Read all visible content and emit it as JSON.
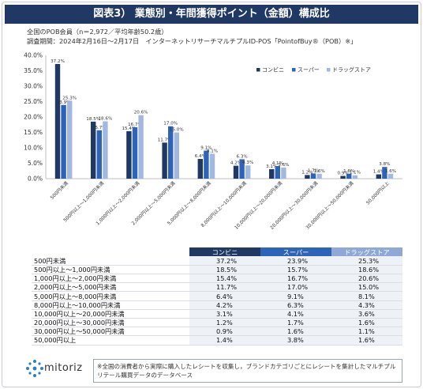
{
  "title": "図表3） 業態別・年間獲得ポイント（金額）構成比",
  "subtitle_line1": "全国のPOB会員（n＝2,972／平均年齢50.2歳）",
  "subtitle_line2": "調査期間：2024年2月16日～2月17日　インターネットリサーチマルチプルID-POS「PointofBuy®（POB）※」",
  "chart_data": {
    "type": "bar",
    "categories": [
      "500円未満",
      "500円以上～1,000円未満",
      "1,000円以上～2,000円未満",
      "2,000円以上～5,000円未満",
      "5,000円以上～8,000円未満",
      "8,000円以上～10,000円未満",
      "10,000円以上～20,000円未満",
      "20,000円以上～30,000円未満",
      "30,000円以上～50,000円未満",
      "50,000円以上"
    ],
    "series": [
      {
        "name": "コンビニ",
        "color": "#1f3864",
        "values": [
          37.2,
          18.5,
          15.4,
          11.7,
          6.4,
          4.2,
          3.1,
          1.2,
          0.9,
          1.4
        ],
        "labels": [
          "37.2%",
          "18.5%",
          "15.4%",
          "11.7%",
          "6.4%",
          "4.2%",
          "3.1%",
          "1.2%",
          "0.9%",
          "1.4%"
        ]
      },
      {
        "name": "スーパー",
        "color": "#2e64b8",
        "values": [
          23.9,
          15.7,
          16.7,
          17.0,
          9.1,
          6.3,
          4.1,
          1.7,
          1.6,
          3.8
        ],
        "labels": [
          "23.9%",
          "15.7%",
          "16.7%",
          "17.0%",
          "9.1%",
          "6.3%",
          "4.1%",
          "1.7%",
          "1.6%",
          "3.8%"
        ]
      },
      {
        "name": "ドラッグストア",
        "color": "#a3b8e0",
        "values": [
          25.3,
          18.6,
          20.6,
          15.0,
          8.1,
          4.3,
          3.6,
          1.6,
          1.1,
          1.6
        ],
        "labels": [
          "25.3%",
          "18.6%",
          "20.6%",
          "15.0%",
          "8.1%",
          "4.3%",
          "3.6%",
          "1.6%",
          "1.1%",
          "1.6%"
        ]
      }
    ],
    "ylim": [
      0,
      40
    ],
    "yticks": [
      "0.0%",
      "5.0%",
      "10.0%",
      "15.0%",
      "20.0%",
      "25.0%",
      "30.0%",
      "35.0%",
      "40.0%"
    ],
    "legend_position": "top-right",
    "grid": false
  },
  "table": {
    "headers": [
      "コンビニ",
      "スーパー",
      "ドラッグストア"
    ],
    "rows": [
      {
        "label": "500円未満",
        "v": [
          "37.2%",
          "23.9%",
          "25.3%"
        ]
      },
      {
        "label": "500円以上～1,000円未満",
        "v": [
          "18.5%",
          "15.7%",
          "18.6%"
        ]
      },
      {
        "label": "1,000円以上～2,000円未満",
        "v": [
          "15.4%",
          "16.7%",
          "20.6%"
        ]
      },
      {
        "label": "2,000円以上～5,000円未満",
        "v": [
          "11.7%",
          "17.0%",
          "15.0%"
        ]
      },
      {
        "label": "5,000円以上～8,000円未満",
        "v": [
          "6.4%",
          "9.1%",
          "8.1%"
        ]
      },
      {
        "label": "8,000円以上～10,000円未満",
        "v": [
          "4.2%",
          "6.3%",
          "4.3%"
        ]
      },
      {
        "label": "10,000円以上～20,000円未満",
        "v": [
          "3.1%",
          "4.1%",
          "3.6%"
        ]
      },
      {
        "label": "20,000円以上～30,000円未満",
        "v": [
          "1.2%",
          "1.7%",
          "1.6%"
        ]
      },
      {
        "label": "30,000円以上～50,000円未満",
        "v": [
          "0.9%",
          "1.6%",
          "1.1%"
        ]
      },
      {
        "label": "50,000円以上",
        "v": [
          "1.4%",
          "3.8%",
          "1.6%"
        ]
      }
    ]
  },
  "logo": {
    "name": "mitoriz"
  },
  "note": "※全国の消費者から実際に購入したレシートを収集し，ブランドカテゴリごとにレシートを集計したマルチプルリテール購買データのデータベース"
}
